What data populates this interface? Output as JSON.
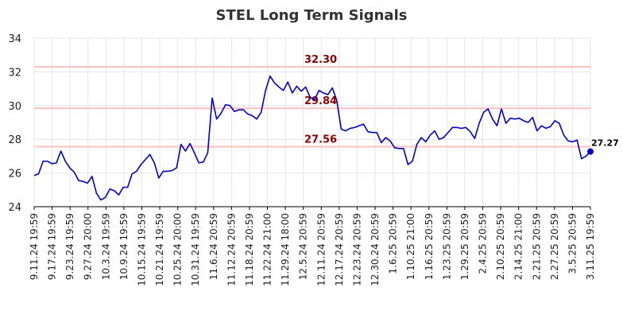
{
  "chart_data": {
    "type": "line",
    "title": "STEL Long Term Signals",
    "xlabel": "",
    "ylabel": "",
    "ylim": [
      24,
      34
    ],
    "yticks": [
      24,
      26,
      28,
      30,
      32,
      34
    ],
    "x_tick_labels": [
      "9.11.24 19:59",
      "9.17.24 19:59",
      "9.23.24 19:59",
      "9.27.24 20:00",
      "10.3.24 19:59",
      "10.9.24 19:59",
      "10.15.24 19:59",
      "10.21.24 19:59",
      "10.25.24 20:00",
      "10.31.24 19:59",
      "11.6.24 20:59",
      "11.12.24 20:59",
      "11.18.24 20:59",
      "11.22.24 21:00",
      "11.29.24 18:00",
      "12.5.24 20:59",
      "12.11.24 20:59",
      "12.17.24 20:59",
      "12.23.24 20:59",
      "12.30.24 20:59",
      "1.6.25 20:59",
      "1.10.25 21:00",
      "1.16.25 20:59",
      "1.23.25 20:59",
      "1.29.25 20:59",
      "2.4.25 20:59",
      "2.10.25 20:59",
      "2.14.25 21:00",
      "2.21.25 20:59",
      "2.27.25 20:59",
      "3.5.25 20:59",
      "3.11.25 19:59"
    ],
    "grid": true,
    "colors": {
      "line": "#0000cc",
      "level_line": "#ffc0c0",
      "level_text": "#8b0000",
      "grid": "#e6e6e6"
    },
    "horizontal_levels": [
      {
        "value": 32.3,
        "label": "32.30"
      },
      {
        "value": 29.84,
        "label": "29.84"
      },
      {
        "value": 27.56,
        "label": "27.56"
      }
    ],
    "last_value_label": "27.27",
    "series": [
      {
        "name": "STEL",
        "values": [
          25.85,
          25.95,
          26.7,
          26.7,
          26.55,
          26.6,
          27.3,
          26.7,
          26.3,
          26.05,
          25.55,
          25.5,
          25.4,
          25.8,
          24.8,
          24.4,
          24.55,
          25.05,
          24.95,
          24.7,
          25.15,
          25.15,
          25.95,
          26.1,
          26.5,
          26.8,
          27.1,
          26.6,
          25.7,
          26.1,
          26.1,
          26.15,
          26.3,
          27.7,
          27.3,
          27.75,
          27.2,
          26.6,
          26.65,
          27.2,
          30.45,
          29.2,
          29.55,
          30.05,
          30.0,
          29.65,
          29.75,
          29.75,
          29.5,
          29.4,
          29.2,
          29.6,
          30.9,
          31.75,
          31.35,
          31.1,
          30.9,
          31.4,
          30.75,
          31.15,
          30.85,
          31.1,
          30.5,
          30.35,
          30.9,
          30.75,
          30.65,
          31.05,
          30.3,
          28.6,
          28.5,
          28.65,
          28.7,
          28.8,
          28.9,
          28.45,
          28.4,
          28.4,
          27.8,
          28.1,
          27.9,
          27.5,
          27.45,
          27.45,
          26.5,
          26.7,
          27.7,
          28.1,
          27.85,
          28.25,
          28.5,
          28.0,
          28.1,
          28.4,
          28.7,
          28.7,
          28.65,
          28.7,
          28.45,
          28.05,
          28.95,
          29.6,
          29.8,
          29.2,
          28.8,
          29.8,
          28.95,
          29.25,
          29.2,
          29.25,
          29.1,
          29.0,
          29.3,
          28.5,
          28.8,
          28.65,
          28.75,
          29.1,
          28.95,
          28.25,
          27.9,
          27.85,
          27.95,
          26.85,
          27.0,
          27.27
        ]
      }
    ]
  }
}
